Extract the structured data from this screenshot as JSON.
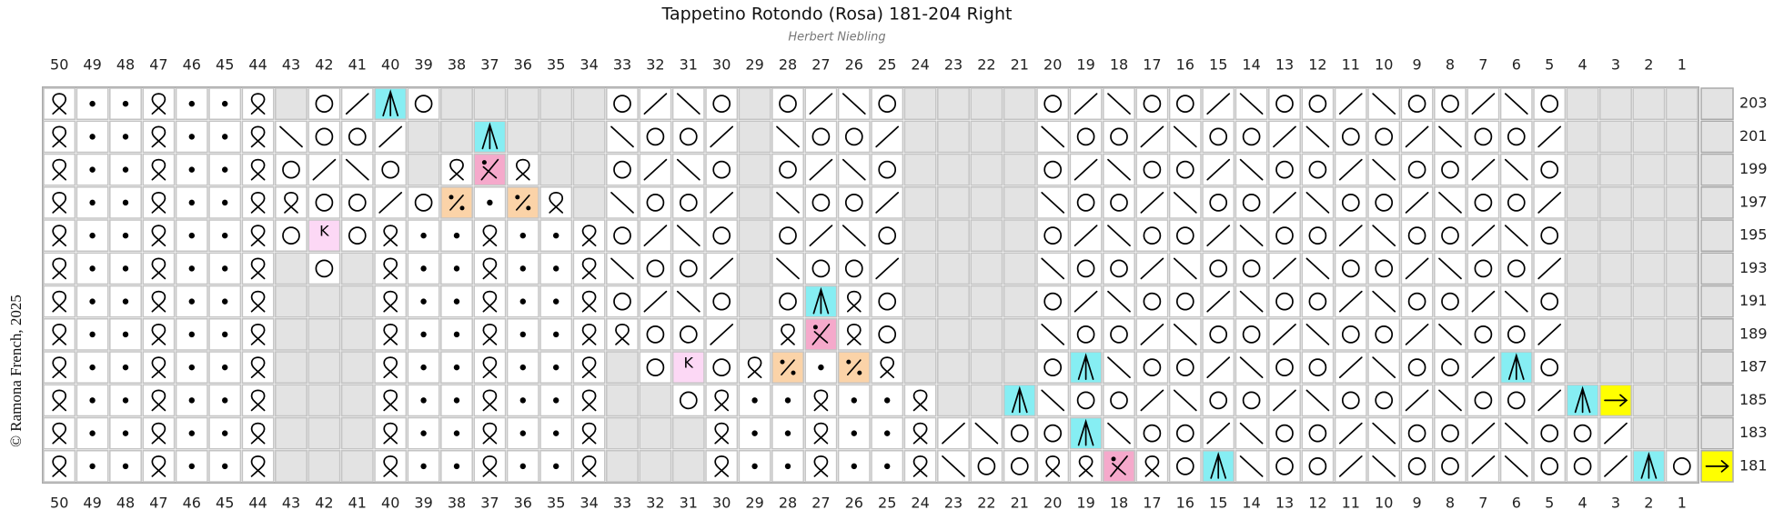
{
  "title": "Tappetino Rotondo (Rosa) 181-204  Right",
  "author": "Herbert Niebling",
  "copyright": "© Ramona French, 2025",
  "columns": [
    50,
    49,
    48,
    47,
    46,
    45,
    44,
    43,
    42,
    41,
    40,
    39,
    38,
    37,
    36,
    35,
    34,
    33,
    32,
    31,
    30,
    29,
    28,
    27,
    26,
    25,
    24,
    23,
    22,
    21,
    20,
    19,
    18,
    17,
    16,
    15,
    14,
    13,
    12,
    11,
    10,
    9,
    8,
    7,
    6,
    5,
    4,
    3,
    2,
    1
  ],
  "rows": [
    203,
    201,
    199,
    197,
    195,
    193,
    191,
    189,
    187,
    185,
    183,
    181
  ],
  "k_label": "K"
}
